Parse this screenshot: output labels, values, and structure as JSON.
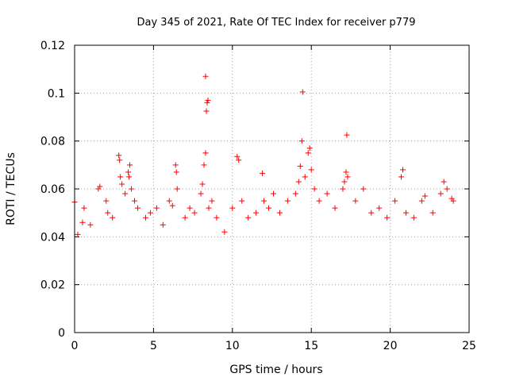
{
  "chart_data": {
    "type": "scatter",
    "title": "Day 345 of 2021, Rate Of TEC Index for receiver p779",
    "xlabel": "GPS time / hours",
    "ylabel": "ROTI / TECUs",
    "xlim": [
      0,
      25
    ],
    "ylim": [
      0,
      0.12
    ],
    "x_ticks": [
      0,
      5,
      10,
      15,
      20,
      25
    ],
    "x_tick_labels": [
      "0",
      "5",
      "10",
      "15",
      "20",
      "25"
    ],
    "y_ticks": [
      0,
      0.02,
      0.04,
      0.06,
      0.08,
      0.1,
      0.12
    ],
    "y_tick_labels": [
      "0",
      "0.02",
      "0.04",
      "0.06",
      "0.08",
      "0.1",
      "0.12"
    ],
    "grid": true,
    "marker": "+",
    "color": "#ff0000",
    "series": [
      {
        "name": "ROTI",
        "points": [
          [
            0.0,
            0.0545
          ],
          [
            0.2,
            0.041
          ],
          [
            0.5,
            0.046
          ],
          [
            0.6,
            0.052
          ],
          [
            1.0,
            0.045
          ],
          [
            1.5,
            0.06
          ],
          [
            1.6,
            0.061
          ],
          [
            2.0,
            0.055
          ],
          [
            2.1,
            0.05
          ],
          [
            2.4,
            0.048
          ],
          [
            2.8,
            0.074
          ],
          [
            2.85,
            0.072
          ],
          [
            2.9,
            0.065
          ],
          [
            3.0,
            0.062
          ],
          [
            3.2,
            0.058
          ],
          [
            3.4,
            0.067
          ],
          [
            3.45,
            0.065
          ],
          [
            3.5,
            0.07
          ],
          [
            3.6,
            0.06
          ],
          [
            3.8,
            0.055
          ],
          [
            4.0,
            0.052
          ],
          [
            4.5,
            0.048
          ],
          [
            4.8,
            0.05
          ],
          [
            5.2,
            0.052
          ],
          [
            5.6,
            0.045
          ],
          [
            6.0,
            0.055
          ],
          [
            6.2,
            0.053
          ],
          [
            6.4,
            0.07
          ],
          [
            6.45,
            0.067
          ],
          [
            6.5,
            0.06
          ],
          [
            7.0,
            0.048
          ],
          [
            7.3,
            0.052
          ],
          [
            7.6,
            0.05
          ],
          [
            8.0,
            0.058
          ],
          [
            8.1,
            0.062
          ],
          [
            8.2,
            0.07
          ],
          [
            8.3,
            0.075
          ],
          [
            8.35,
            0.0925
          ],
          [
            8.4,
            0.096
          ],
          [
            8.45,
            0.097
          ],
          [
            8.3,
            0.107
          ],
          [
            8.5,
            0.052
          ],
          [
            8.7,
            0.055
          ],
          [
            9.0,
            0.048
          ],
          [
            9.5,
            0.042
          ],
          [
            10.0,
            0.052
          ],
          [
            10.3,
            0.0735
          ],
          [
            10.4,
            0.072
          ],
          [
            10.6,
            0.055
          ],
          [
            11.0,
            0.048
          ],
          [
            11.5,
            0.05
          ],
          [
            11.9,
            0.0665
          ],
          [
            12.0,
            0.055
          ],
          [
            12.3,
            0.052
          ],
          [
            12.6,
            0.058
          ],
          [
            13.0,
            0.05
          ],
          [
            13.5,
            0.055
          ],
          [
            14.0,
            0.058
          ],
          [
            14.2,
            0.063
          ],
          [
            14.3,
            0.0695
          ],
          [
            14.4,
            0.08
          ],
          [
            14.45,
            0.1005
          ],
          [
            14.6,
            0.065
          ],
          [
            14.8,
            0.075
          ],
          [
            14.9,
            0.077
          ],
          [
            15.0,
            0.068
          ],
          [
            15.2,
            0.06
          ],
          [
            15.5,
            0.055
          ],
          [
            16.0,
            0.058
          ],
          [
            16.5,
            0.052
          ],
          [
            17.0,
            0.06
          ],
          [
            17.1,
            0.063
          ],
          [
            17.2,
            0.067
          ],
          [
            17.25,
            0.0825
          ],
          [
            17.3,
            0.065
          ],
          [
            17.8,
            0.055
          ],
          [
            18.3,
            0.06
          ],
          [
            18.8,
            0.05
          ],
          [
            19.3,
            0.052
          ],
          [
            19.8,
            0.048
          ],
          [
            20.3,
            0.055
          ],
          [
            20.7,
            0.065
          ],
          [
            20.8,
            0.068
          ],
          [
            21.0,
            0.05
          ],
          [
            21.5,
            0.048
          ],
          [
            22.0,
            0.055
          ],
          [
            22.2,
            0.057
          ],
          [
            22.7,
            0.05
          ],
          [
            23.2,
            0.058
          ],
          [
            23.4,
            0.063
          ],
          [
            23.6,
            0.06
          ],
          [
            23.9,
            0.056
          ],
          [
            24.0,
            0.055
          ]
        ]
      }
    ]
  }
}
